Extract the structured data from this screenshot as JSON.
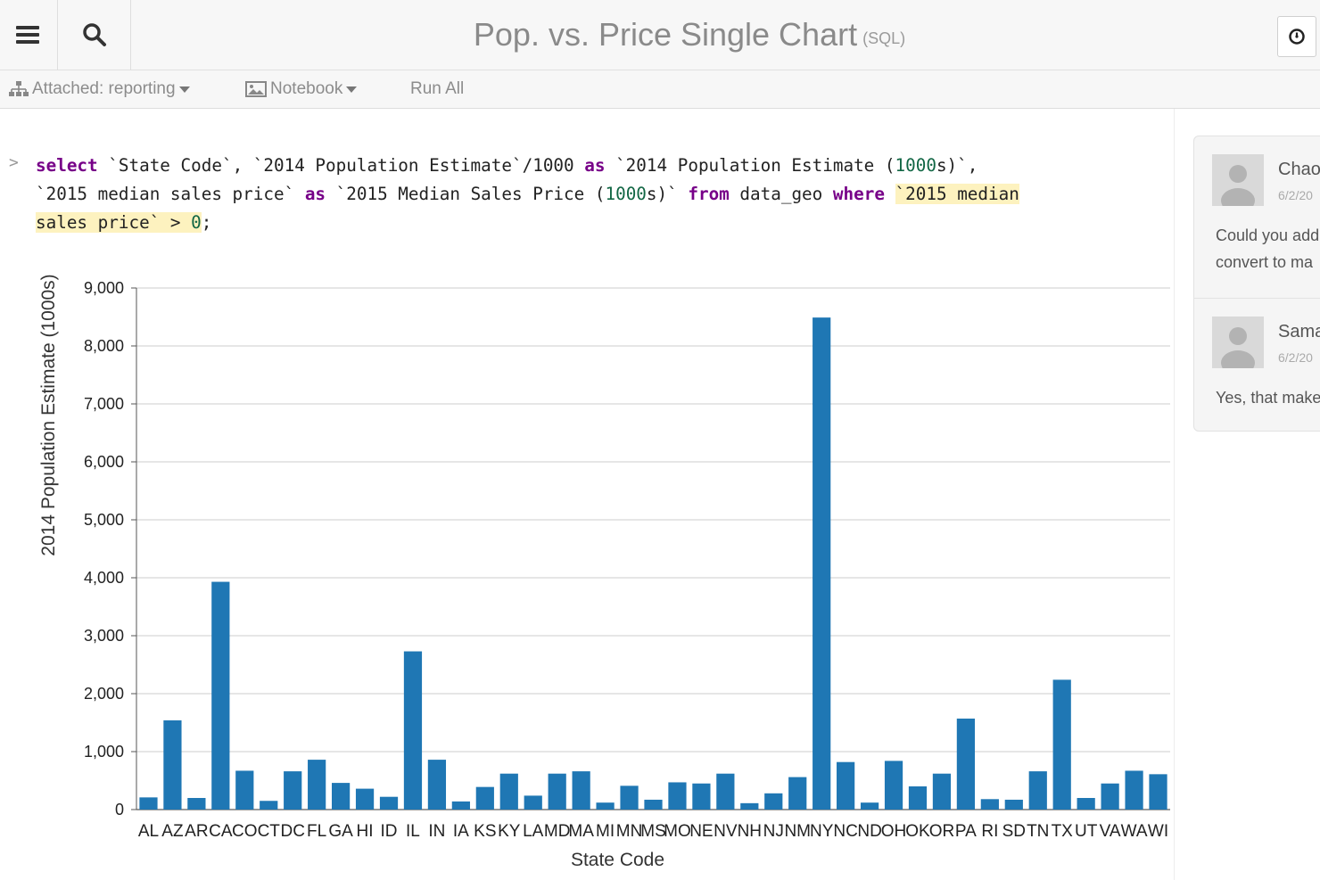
{
  "header": {
    "title": "Pop. vs. Price Single Chart",
    "language_tag": "(SQL)",
    "icons": [
      "menu-icon",
      "search-icon",
      "clock-icon"
    ]
  },
  "toolbar": {
    "attached_label": "Attached: reporting",
    "notebook_label": "Notebook",
    "run_all_label": "Run All"
  },
  "cell": {
    "prompt": ">",
    "tokens": {
      "select": "select",
      "part1": " `State Code`, `2014 Population Estimate`/1000 ",
      "as1": "as",
      "part2": " `2014 Population Estimate (",
      "n1": "1000",
      "part3": "s)`,",
      "part4": "`2015 median sales price` ",
      "as2": "as",
      "part5": " `2015 Median Sales Price (",
      "n2": "1000",
      "part6": "s)` ",
      "from": "from",
      "part7": " data_geo ",
      "where": "where",
      "hl1": "`2015 median",
      "hl2": "sales price` > ",
      "n3": "0",
      "end": ";"
    }
  },
  "comments": [
    {
      "author": "Chao",
      "date": "6/2/20",
      "text_line1": "Could you add",
      "text_line2": "convert to ma"
    },
    {
      "author": "Sama",
      "date": "6/2/20",
      "text_line1": "Yes, that make"
    }
  ],
  "chart_data": {
    "type": "bar",
    "xlabel": "State Code",
    "ylabel": "2014 Population Estimate (1000s)",
    "ylim": [
      0,
      9000
    ],
    "yticks": [
      "0",
      "1,000",
      "2,000",
      "3,000",
      "4,000",
      "5,000",
      "6,000",
      "7,000",
      "8,000",
      "9,000"
    ],
    "grid": true,
    "bar_color": "#1f77b4",
    "categories": [
      "AL",
      "AZ",
      "AR",
      "CA",
      "CO",
      "CT",
      "DC",
      "FL",
      "GA",
      "HI",
      "ID",
      "IL",
      "IN",
      "IA",
      "KS",
      "KY",
      "LA",
      "MD",
      "MA",
      "MI",
      "MN",
      "MS",
      "MO",
      "NE",
      "NV",
      "NH",
      "NJ",
      "NM",
      "NY",
      "NC",
      "ND",
      "OH",
      "OK",
      "OR",
      "PA",
      "RI",
      "SD",
      "TN",
      "TX",
      "UT",
      "VA",
      "WA",
      "WI"
    ],
    "values": [
      210,
      1540,
      200,
      3930,
      670,
      150,
      660,
      860,
      460,
      360,
      220,
      2730,
      860,
      140,
      390,
      620,
      240,
      620,
      660,
      120,
      410,
      170,
      470,
      450,
      620,
      110,
      280,
      560,
      8490,
      820,
      120,
      840,
      400,
      620,
      1570,
      180,
      170,
      660,
      2240,
      200,
      450,
      670,
      610
    ]
  }
}
